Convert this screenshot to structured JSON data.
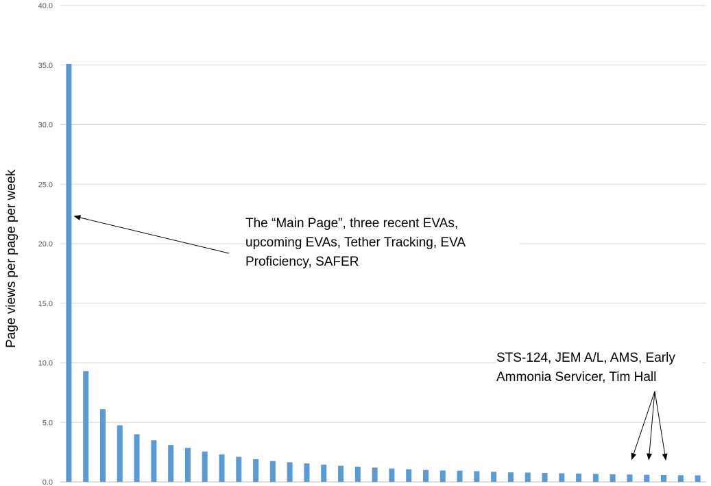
{
  "chart_data": {
    "type": "bar",
    "title": "",
    "xlabel": "",
    "ylabel": "Page views per page per week",
    "ylim": [
      0,
      40
    ],
    "yticks": [
      "0.0",
      "5.0",
      "10.0",
      "15.0",
      "20.0",
      "25.0",
      "30.0",
      "35.0",
      "40.0"
    ],
    "grid": true,
    "bar_color": "#5b9bd5",
    "values": [
      35.1,
      9.3,
      6.1,
      4.75,
      4.0,
      3.5,
      3.1,
      2.85,
      2.55,
      2.3,
      2.1,
      1.9,
      1.75,
      1.65,
      1.55,
      1.45,
      1.35,
      1.28,
      1.2,
      1.12,
      1.06,
      1.0,
      0.96,
      0.94,
      0.9,
      0.85,
      0.8,
      0.78,
      0.75,
      0.72,
      0.7,
      0.67,
      0.64,
      0.62,
      0.6,
      0.58,
      0.56,
      0.55
    ],
    "annotations": [
      {
        "text": "The “Main Page”, three recent EVAs,\nupcoming EVAs, Tether Tracking, EVA\nProficiency, SAFER",
        "points_to_bars": [
          0
        ]
      },
      {
        "text": "STS-124, JEM A/L, AMS, Early\nAmmonia Servicer, Tim Hall",
        "points_to_bars": [
          33,
          34,
          35
        ]
      }
    ]
  }
}
